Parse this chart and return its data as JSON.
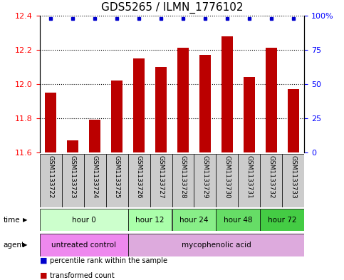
{
  "title": "GDS5265 / ILMN_1776102",
  "samples": [
    "GSM1133722",
    "GSM1133723",
    "GSM1133724",
    "GSM1133725",
    "GSM1133726",
    "GSM1133727",
    "GSM1133728",
    "GSM1133729",
    "GSM1133730",
    "GSM1133731",
    "GSM1133732",
    "GSM1133733"
  ],
  "bar_values": [
    11.95,
    11.67,
    11.79,
    12.02,
    12.15,
    12.1,
    12.21,
    12.17,
    12.28,
    12.04,
    12.21,
    11.97
  ],
  "percentile_values": [
    99,
    99,
    99,
    99,
    99,
    99,
    99,
    99,
    99,
    99,
    99,
    99
  ],
  "bar_color": "#BB0000",
  "percentile_color": "#0000CC",
  "ylim_left": [
    11.6,
    12.4
  ],
  "ylim_right": [
    0,
    100
  ],
  "yticks_left": [
    11.6,
    11.8,
    12.0,
    12.2,
    12.4
  ],
  "yticks_right": [
    0,
    25,
    50,
    75,
    100
  ],
  "time_groups": [
    {
      "label": "hour 0",
      "start": 0,
      "end": 4,
      "color": "#ccffcc"
    },
    {
      "label": "hour 12",
      "start": 4,
      "end": 6,
      "color": "#aaffaa"
    },
    {
      "label": "hour 24",
      "start": 6,
      "end": 8,
      "color": "#88ee88"
    },
    {
      "label": "hour 48",
      "start": 8,
      "end": 10,
      "color": "#66dd66"
    },
    {
      "label": "hour 72",
      "start": 10,
      "end": 12,
      "color": "#44cc44"
    }
  ],
  "agent_groups": [
    {
      "label": "untreated control",
      "start": 0,
      "end": 4,
      "color": "#ee88ee"
    },
    {
      "label": "mycophenolic acid",
      "start": 4,
      "end": 12,
      "color": "#ddaadd"
    }
  ],
  "legend_bar_label": "transformed count",
  "legend_percentile_label": "percentile rank within the sample",
  "bg_plot": "#ffffff",
  "bg_sample_row": "#cccccc",
  "title_fontsize": 11,
  "tick_fontsize": 8,
  "sample_label_fontsize": 6.5
}
